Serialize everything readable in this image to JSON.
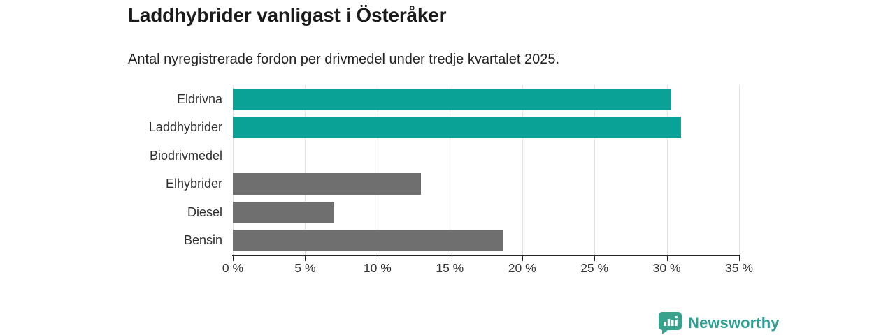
{
  "header": {
    "title": "Laddhybrider vanligast i Österåker",
    "subtitle": "Antal nyregistrerade fordon per drivmedel under tredje kvartalet 2025."
  },
  "chart_data": {
    "type": "bar",
    "orientation": "horizontal",
    "categories": [
      "Eldrivna",
      "Laddhybrider",
      "Biodrivmedel",
      "Elhybrider",
      "Diesel",
      "Bensin"
    ],
    "values": [
      30.3,
      31.0,
      0,
      13.0,
      7.0,
      18.7
    ],
    "bar_colors": [
      "#0aa296",
      "#0aa296",
      "#6f6f6f",
      "#6f6f6f",
      "#6f6f6f",
      "#6f6f6f"
    ],
    "title": "Laddhybrider vanligast i Österåker",
    "xlabel": "",
    "ylabel": "",
    "xlim": [
      0,
      35
    ],
    "xticks": [
      0,
      5,
      10,
      15,
      20,
      25,
      30,
      35
    ],
    "xtick_suffix": " %",
    "grid": true,
    "legend": "none"
  },
  "colors": {
    "accent_teal": "#0aa296",
    "bar_gray": "#6f6f6f",
    "gridline": "#e2e2e2",
    "axis": "#262626",
    "text_dark": "#1b1b1b",
    "logo_teal": "#2f9e93",
    "logo_icon_teal": "#38a28c"
  },
  "logo": {
    "text": "Newsworthy",
    "icon": "newsworthy-chart-bubble-icon"
  }
}
